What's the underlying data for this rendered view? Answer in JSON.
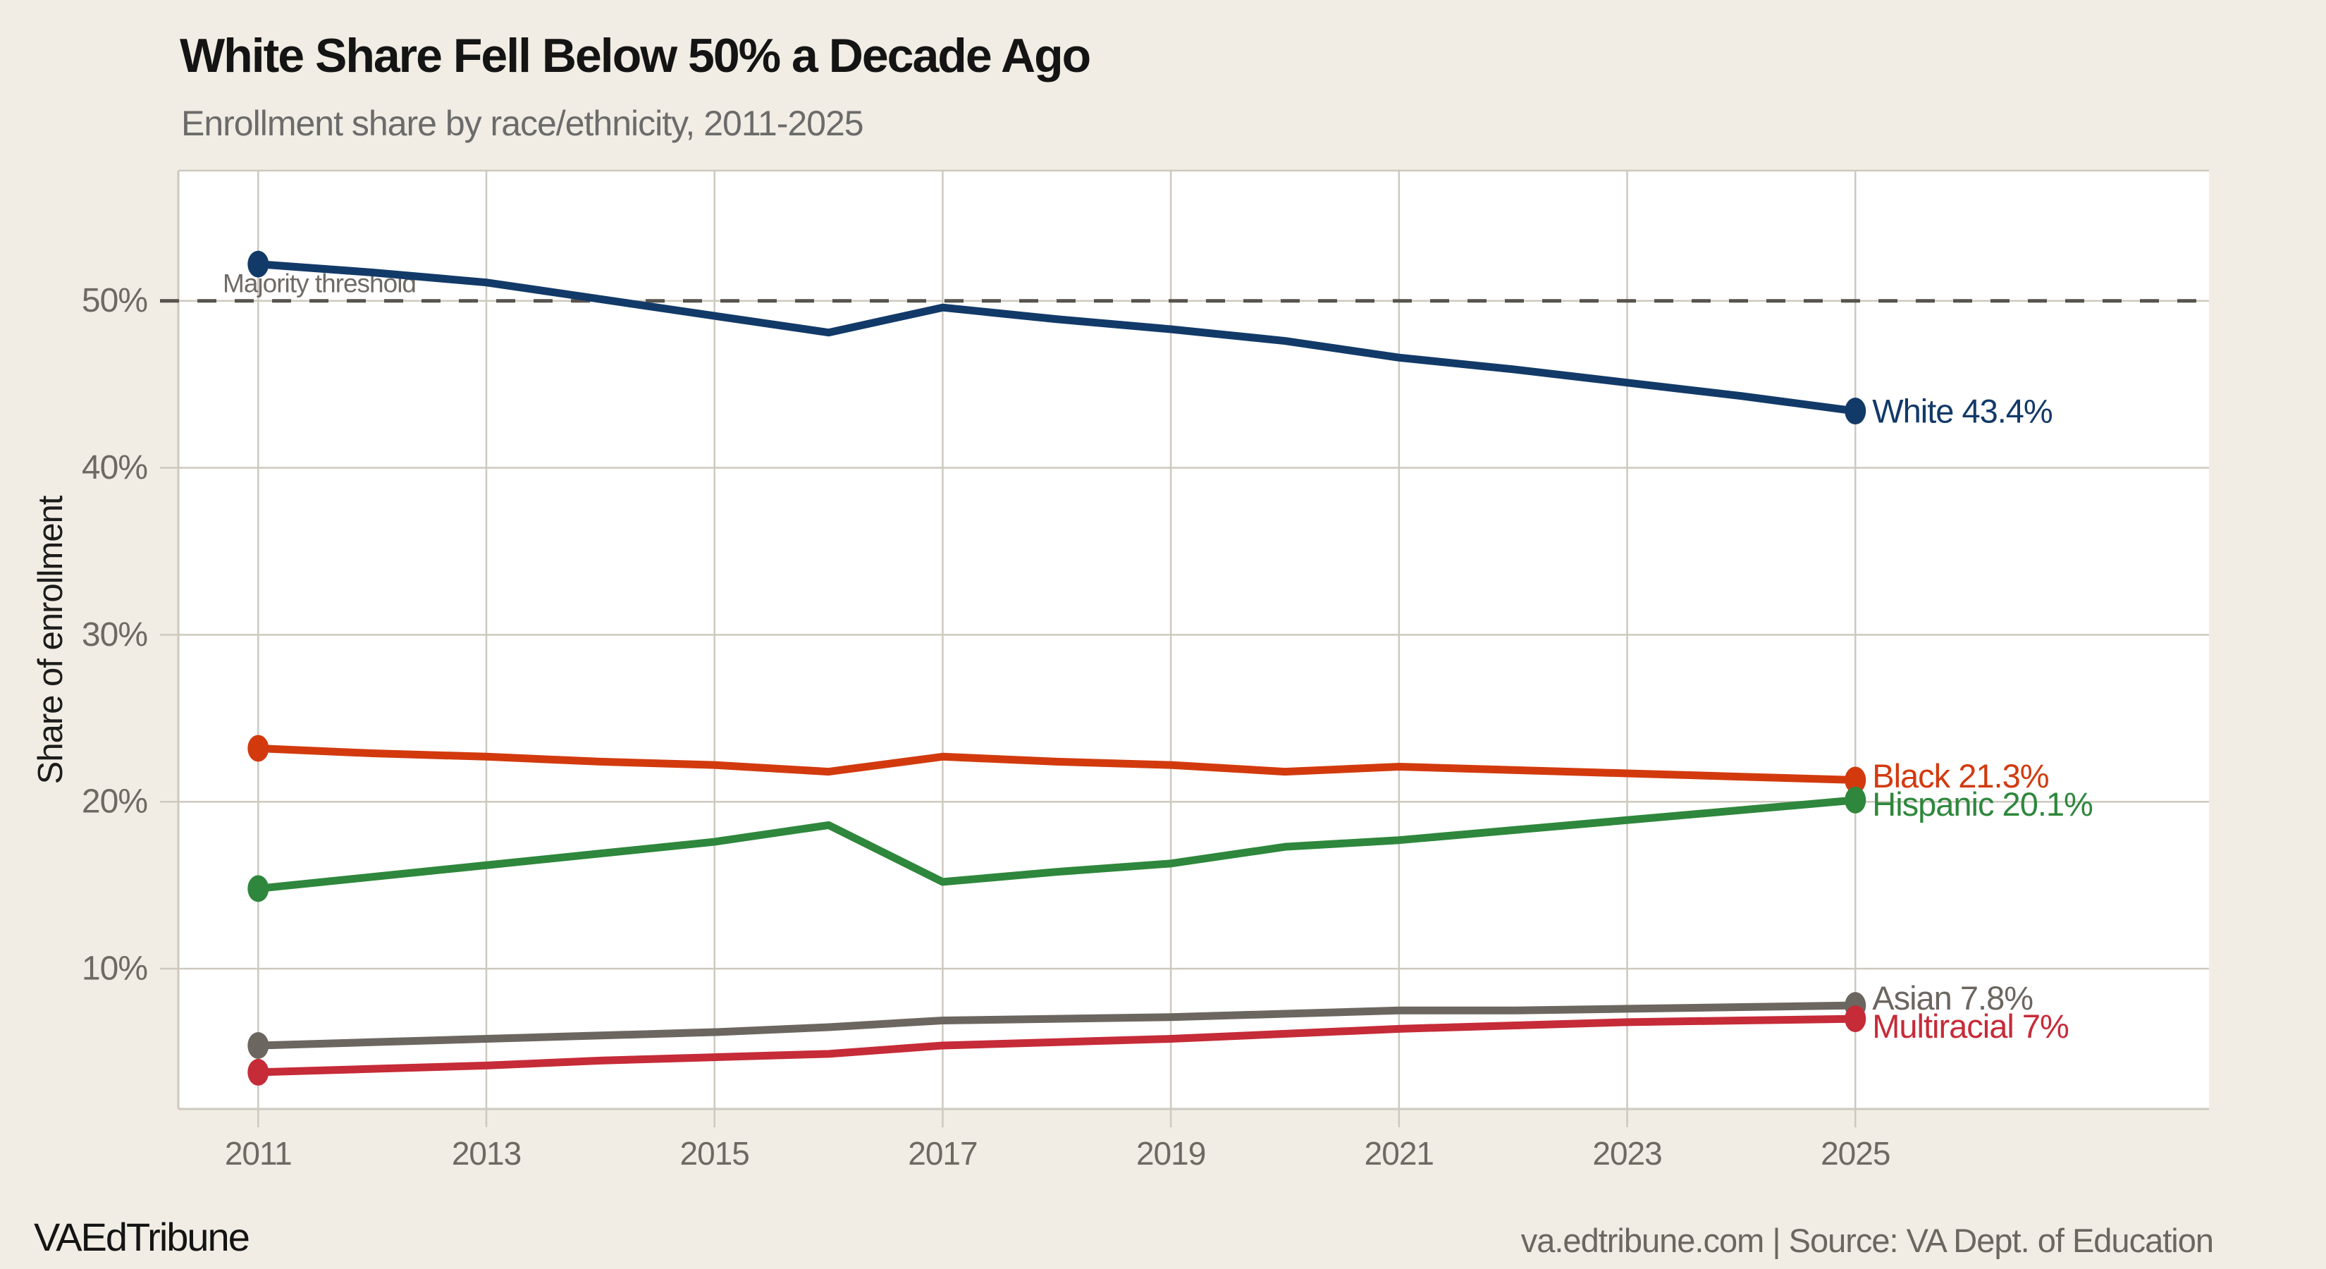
{
  "header": {
    "title": "White Share Fell Below 50% a Decade Ago",
    "subtitle": "Enrollment share by race/ethnicity, 2011-2025"
  },
  "footer": {
    "brand": "VAEdTribune",
    "attribution": "va.edtribune.com | Source: VA Dept. of Education"
  },
  "chart_data": {
    "type": "line",
    "title": "White Share Fell Below 50% a Decade Ago",
    "subtitle": "Enrollment share by race/ethnicity, 2011-2025",
    "xlabel": "",
    "ylabel": "Share of enrollment",
    "grid": true,
    "legend_position": "end-of-line labels",
    "x": [
      2011,
      2012,
      2013,
      2014,
      2015,
      2016,
      2017,
      2018,
      2019,
      2020,
      2021,
      2022,
      2023,
      2024,
      2025
    ],
    "x_tick_labels": [
      "2011",
      "2013",
      "2015",
      "2017",
      "2019",
      "2021",
      "2023",
      "2025"
    ],
    "y_ticks": [
      {
        "value": 50,
        "label": "50%"
      },
      {
        "value": 40,
        "label": "40%"
      },
      {
        "value": 30,
        "label": "30%"
      },
      {
        "value": 20,
        "label": "20%"
      },
      {
        "value": 10,
        "label": "10%"
      }
    ],
    "xlim": [
      2010.3,
      2028.1
    ],
    "ylim": [
      1.6,
      57.8
    ],
    "threshold": {
      "value": 50,
      "label": "Majority threshold"
    },
    "series": [
      {
        "name": "White",
        "color": "#123a68",
        "end_label": "White 43.4%",
        "values": [
          52.2,
          51.7,
          51.1,
          50.1,
          49.1,
          48.1,
          49.6,
          48.9,
          48.3,
          47.6,
          46.6,
          45.9,
          45.1,
          44.3,
          43.4
        ]
      },
      {
        "name": "Black",
        "color": "#d23a0e",
        "end_label": "Black 21.3%",
        "values": [
          23.2,
          22.9,
          22.7,
          22.4,
          22.2,
          21.8,
          22.7,
          22.4,
          22.2,
          21.8,
          22.1,
          21.9,
          21.7,
          21.5,
          21.3
        ]
      },
      {
        "name": "Hispanic",
        "color": "#2e873c",
        "end_label": "Hispanic 20.1%",
        "values": [
          14.8,
          15.5,
          16.2,
          16.9,
          17.6,
          18.6,
          15.2,
          15.8,
          16.3,
          17.3,
          17.7,
          18.3,
          18.9,
          19.5,
          20.1
        ]
      },
      {
        "name": "Asian",
        "color": "#6c6660",
        "end_label": "Asian 7.8%",
        "values": [
          5.4,
          5.6,
          5.8,
          6.0,
          6.2,
          6.5,
          6.9,
          7.0,
          7.1,
          7.3,
          7.5,
          7.5,
          7.6,
          7.7,
          7.8
        ]
      },
      {
        "name": "Multiracial",
        "color": "#c62b38",
        "end_label": "Multiracial 7%",
        "values": [
          3.8,
          4.0,
          4.2,
          4.5,
          4.7,
          4.9,
          5.4,
          5.6,
          5.8,
          6.1,
          6.4,
          6.6,
          6.8,
          6.9,
          7.0
        ]
      }
    ]
  }
}
